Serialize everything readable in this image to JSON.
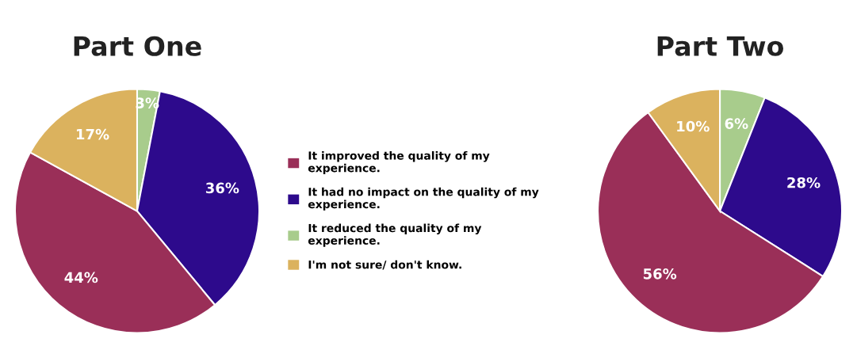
{
  "chart_data": [
    {
      "type": "pie",
      "title": "Part One",
      "categories": [
        "It reduced the quality of my experience.",
        "It had no impact on the quality of my experience.",
        "It improved the quality of my experience.",
        "I'm not sure/ don't know."
      ],
      "values": [
        3,
        36,
        44,
        17
      ],
      "value_labels": [
        "3%",
        "36%",
        "44%",
        "17%"
      ],
      "colors": [
        "#a8cc8c",
        "#2d0a8c",
        "#9a2f58",
        "#dbb25e"
      ],
      "legend": "right"
    },
    {
      "type": "pie",
      "title": "Part Two",
      "categories": [
        null,
        null,
        null,
        null
      ],
      "values": [
        6,
        28,
        56,
        10
      ],
      "value_labels": [
        "6%",
        "28%",
        "56%",
        "10%"
      ],
      "colors": [
        "#a8cc8c",
        "#2d0a8c",
        "#9a2f58",
        "#dbb25e"
      ]
    }
  ]
}
